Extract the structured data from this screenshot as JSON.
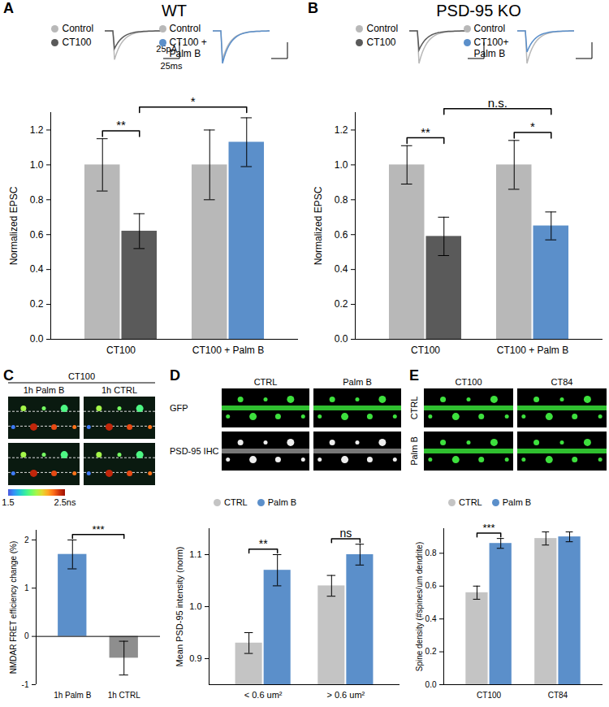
{
  "chart_data": [
    {
      "type": "bar",
      "panel": "A",
      "title": "WT",
      "y_label": "Normalized EPSC",
      "categories": [
        "CT100",
        "CT100 + Palm B"
      ],
      "series": [
        {
          "name": "Control",
          "color": "#b8b8b8",
          "values": [
            1.0,
            1.0
          ],
          "errors": [
            0.15,
            0.2
          ]
        },
        {
          "name": "CT100",
          "color": "#5a5a5a",
          "values": [
            0.62,
            null
          ],
          "errors": [
            0.1,
            null
          ]
        },
        {
          "name": "CT100 + Palm B",
          "color": "#5b8fca",
          "values": [
            null,
            1.13
          ],
          "errors": [
            null,
            0.14
          ]
        }
      ],
      "ylim": [
        0,
        1.3
      ],
      "yticks": [
        {
          "value": 0,
          "label": "0.0"
        },
        0.2,
        0.4,
        0.6,
        0.8,
        {
          "value": 1,
          "label": "1.0"
        },
        1.2
      ],
      "annotations": [
        {
          "label": "**",
          "from": [
            "CT100",
            "Control"
          ],
          "to": [
            "CT100",
            "CT100"
          ]
        },
        {
          "label": "*",
          "from": [
            "CT100",
            "CT100"
          ],
          "to": [
            "CT100 + Palm B",
            "CT100 + Palm B"
          ]
        }
      ],
      "scale_bar": {
        "y": "25pA",
        "x": "25ms"
      }
    },
    {
      "type": "bar",
      "panel": "B",
      "title": "PSD-95 KO",
      "y_label": "Normalized EPSC",
      "categories": [
        "CT100",
        "CT100 + Palm B"
      ],
      "series": [
        {
          "name": "Control",
          "color": "#b8b8b8",
          "values": [
            1.0,
            1.0
          ],
          "errors": [
            0.11,
            0.14
          ]
        },
        {
          "name": "CT100",
          "color": "#5a5a5a",
          "values": [
            0.59,
            null
          ],
          "errors": [
            0.11,
            null
          ]
        },
        {
          "name": "CT100+ Palm B",
          "color": "#5b8fca",
          "values": [
            null,
            0.65
          ],
          "errors": [
            null,
            0.08
          ]
        }
      ],
      "ylim": [
        0,
        1.3
      ],
      "yticks": [
        {
          "value": 0,
          "label": "0.0"
        },
        0.2,
        0.4,
        0.6,
        0.8,
        {
          "value": 1,
          "label": "1.0"
        },
        1.2
      ],
      "annotations": [
        {
          "label": "**",
          "from": [
            "CT100",
            "Control"
          ],
          "to": [
            "CT100",
            "CT100"
          ]
        },
        {
          "label": "*",
          "from": [
            "CT100 + Palm B",
            "Control"
          ],
          "to": [
            "CT100 + Palm B",
            "CT100+ Palm B"
          ]
        },
        {
          "label": "n.s.",
          "from": [
            "CT100",
            "CT100"
          ],
          "to": [
            "CT100 + Palm B",
            "CT100+ Palm B"
          ]
        }
      ]
    },
    {
      "type": "bar",
      "panel": "C",
      "y_label": "NMDAR FRET efficiency change (%)",
      "categories": [
        "1h Palm B",
        "1h CTRL"
      ],
      "values": [
        1.7,
        -0.45
      ],
      "errors": [
        0.3,
        0.35
      ],
      "colors": [
        "#5b8fca",
        "#8e8e8e"
      ],
      "ylim": [
        -1,
        2.2
      ],
      "yticks": [
        -1,
        0,
        1,
        2
      ],
      "annotations": [
        {
          "label": "***",
          "from": [
            "1h Palm B"
          ],
          "to": [
            "1h CTRL"
          ]
        }
      ],
      "images": {
        "header": "CT100",
        "columns": [
          "1h Palm B",
          "1h CTRL"
        ],
        "colorbar": {
          "range": [
            1.5,
            2.5
          ],
          "ticks": [
            1.5,
            {
              "value": 2.5,
              "label": "2.5ns"
            }
          ]
        }
      }
    },
    {
      "type": "bar",
      "panel": "D",
      "y_label": "Mean PSD-95 intensity (norm)",
      "categories": [
        "< 0.6 um²",
        "> 0.6 um²"
      ],
      "series": [
        {
          "name": "CTRL",
          "color": "#c4c4c4",
          "values": [
            0.93,
            1.04
          ],
          "errors": [
            0.02,
            0.02
          ]
        },
        {
          "name": "Palm B",
          "color": "#5b8fca",
          "values": [
            1.07,
            1.1
          ],
          "errors": [
            0.03,
            0.02
          ]
        }
      ],
      "ylim": [
        0.85,
        1.15
      ],
      "yticks": [
        0.9,
        {
          "value": 1,
          "label": "1.0"
        },
        1.1
      ],
      "legend": "top",
      "annotations": [
        {
          "label": "**",
          "from": [
            "< 0.6 um²",
            "CTRL"
          ],
          "to": [
            "< 0.6 um²",
            "Palm B"
          ]
        },
        {
          "label": "ns",
          "from": [
            "> 0.6 um²",
            "CTRL"
          ],
          "to": [
            "> 0.6 um²",
            "Palm B"
          ]
        }
      ],
      "images": {
        "columns": [
          "CTRL",
          "Palm B"
        ],
        "rows": [
          "GFP",
          "PSD-95 IHC"
        ]
      }
    },
    {
      "type": "bar",
      "panel": "E",
      "y_label": "Spine density (#spines/um dendrite)",
      "categories": [
        "CT100",
        "CT84"
      ],
      "series": [
        {
          "name": "CTRL",
          "color": "#c4c4c4",
          "values": [
            0.56,
            0.89
          ],
          "errors": [
            0.04,
            0.04
          ]
        },
        {
          "name": "Palm B",
          "color": "#5b8fca",
          "values": [
            0.86,
            0.9
          ],
          "errors": [
            0.03,
            0.03
          ]
        }
      ],
      "ylim": [
        0,
        0.95
      ],
      "yticks": [
        {
          "value": 0,
          "label": "0.0"
        },
        0.2,
        0.4,
        0.6,
        0.8
      ],
      "legend": "top",
      "annotations": [
        {
          "label": "***",
          "from": [
            "CT100",
            "CTRL"
          ],
          "to": [
            "CT100",
            "Palm B"
          ]
        }
      ],
      "images": {
        "columns": [
          "CT100",
          "CT84"
        ],
        "rows": [
          "CTRL",
          "Palm B"
        ]
      }
    }
  ]
}
